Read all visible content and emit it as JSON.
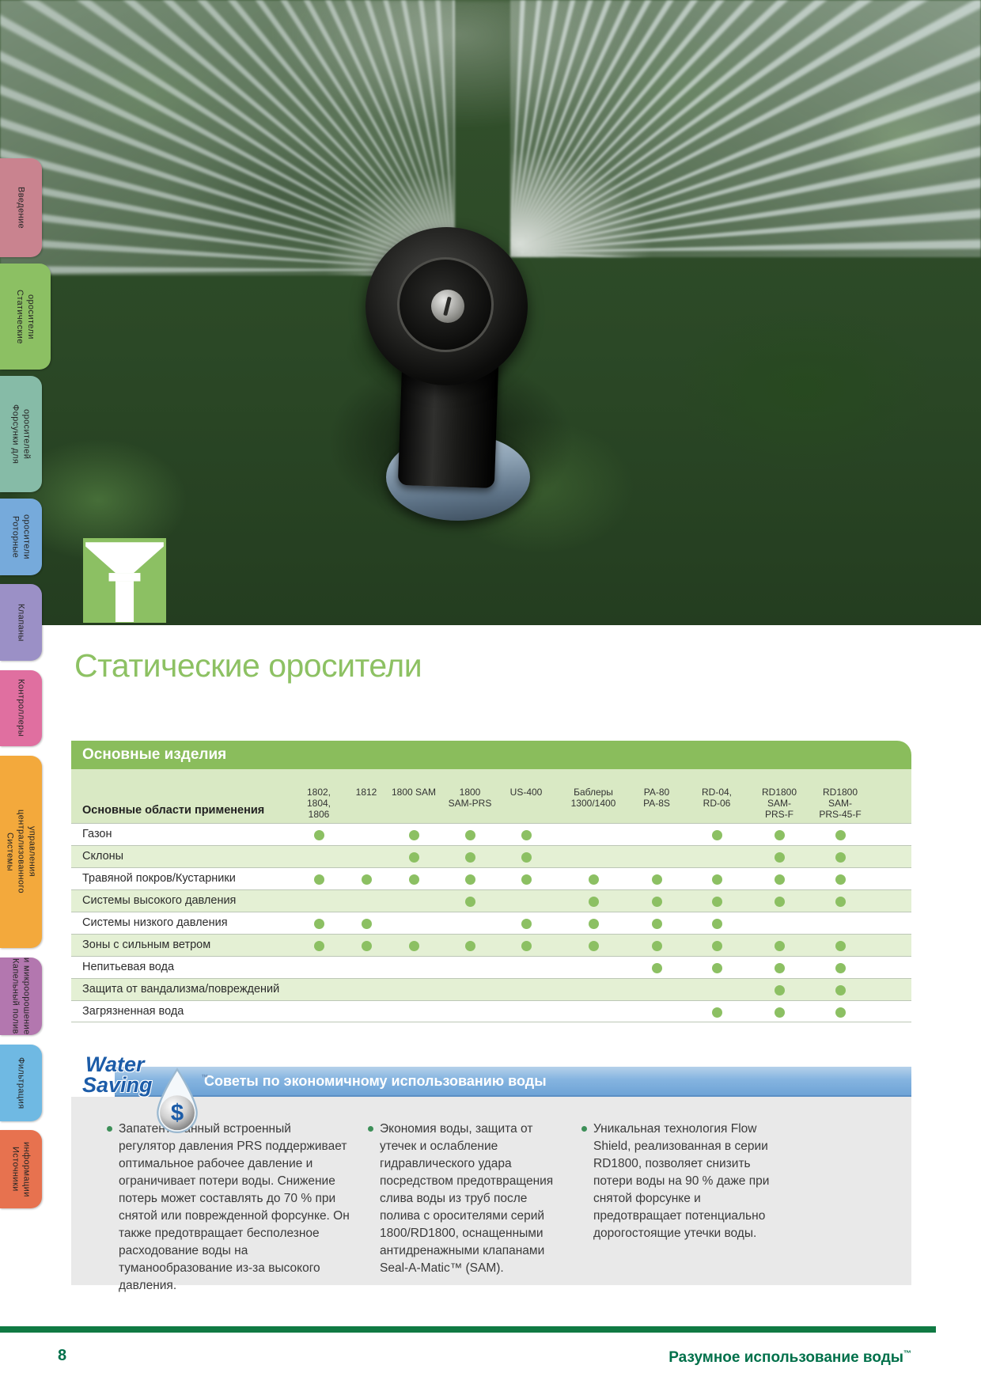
{
  "sidebar": {
    "tabs": [
      {
        "label": "Введение",
        "color": "#c9838f",
        "active": false
      },
      {
        "label": "Статические\nоросители",
        "color": "#8cc063",
        "active": true
      },
      {
        "label": "Форсунки для\nоросителей",
        "color": "#86bba7",
        "active": false
      },
      {
        "label": "Роторные оросители",
        "color": "#76aadb",
        "active": false
      },
      {
        "label": "Клапаны",
        "color": "#9b90c6",
        "active": false
      },
      {
        "label": "Контроллеры",
        "color": "#e06fa0",
        "active": false
      },
      {
        "label": "Системы\nцентрализованного\nуправления",
        "color": "#f3a93c",
        "active": false
      },
      {
        "label": "Капельный полив\nи микроорошение",
        "color": "#b377af",
        "active": false
      },
      {
        "label": "Фильтрация",
        "color": "#6fb9e3",
        "active": false
      },
      {
        "label": "Источники\nинформации",
        "color": "#e7724f",
        "active": false
      }
    ]
  },
  "hero": {
    "title": "Статические оросители",
    "section_icon": "spray-sprinkler-icon"
  },
  "table": {
    "title": "Основные изделия",
    "row_header_label": "Основные области применения",
    "columns": [
      "1802,\n1804,\n1806",
      "1812",
      "1800 SAM",
      "1800\nSAM-PRS",
      "US-400",
      "Баблеры\n1300/1400",
      "PA-80\nPA-8S",
      "RD-04,\nRD-06",
      "RD1800\nSAM-\nPRS-F",
      "RD1800\nSAM-\nPRS-45-F"
    ],
    "rows": [
      {
        "label": "Газон",
        "dots": [
          1,
          0,
          1,
          1,
          1,
          0,
          0,
          1,
          1,
          1
        ]
      },
      {
        "label": "Склоны",
        "dots": [
          0,
          0,
          1,
          1,
          1,
          0,
          0,
          0,
          1,
          1
        ]
      },
      {
        "label": "Травяной покров/Кустарники",
        "dots": [
          1,
          1,
          1,
          1,
          1,
          1,
          1,
          1,
          1,
          1
        ]
      },
      {
        "label": "Системы высокого давления",
        "dots": [
          0,
          0,
          0,
          1,
          0,
          1,
          1,
          1,
          1,
          1
        ]
      },
      {
        "label": "Системы низкого давления",
        "dots": [
          1,
          1,
          0,
          0,
          1,
          1,
          1,
          1,
          0,
          0
        ]
      },
      {
        "label": "Зоны с сильным ветром",
        "dots": [
          1,
          1,
          1,
          1,
          1,
          1,
          1,
          1,
          1,
          1
        ]
      },
      {
        "label": "Непитьевая вода",
        "dots": [
          0,
          0,
          0,
          0,
          0,
          0,
          1,
          1,
          1,
          1
        ]
      },
      {
        "label": "Защита от вандализма/повреждений",
        "dots": [
          0,
          0,
          0,
          0,
          0,
          0,
          0,
          0,
          1,
          1
        ]
      },
      {
        "label": "Загрязненная вода",
        "dots": [
          0,
          0,
          0,
          0,
          0,
          0,
          0,
          1,
          1,
          1
        ]
      }
    ]
  },
  "water_saving": {
    "logo_line1": "Water",
    "logo_line2": "Saving",
    "logo_tm": "™",
    "logo_dollar": "$",
    "band_title": "Советы по экономичному использованию воды",
    "bullets": [
      "Запатентованный встроенный регулятор давления PRS поддерживает оптимальное рабочее давление и ограничивает потери воды. Снижение потерь может составлять до 70 % при снятой или поврежденной форсунке. Он также предотвращает бесполезное расходование воды на туманообразование из-за высокого давления.",
      "Экономия воды, защита от утечек и ослабление гидравлического удара посредством предотвращения слива воды из труб после полива с оросителями серий 1800/RD1800, оснащенными антидренажными клапанами Seal-A-Matic™ (SAM).",
      "Уникальная технология Flow Shield, реализованная в серии RD1800, позволяет снизить потери воды на 90 % даже при снятой форсунке и предотвращает потенциально дорогостоящие утечки воды."
    ]
  },
  "footer": {
    "page_number": "8",
    "tagline": "Разумное использование воды",
    "tagline_tm": "™"
  },
  "colors": {
    "accent_green": "#8cc063",
    "table_bar_green": "#8abd5c",
    "table_header_bg": "#d9e9c4",
    "table_alt_row": "#e4f0d4",
    "band_blue": "#7fb0de",
    "footer_green": "#00704a",
    "rule_green": "#107a43",
    "logo_blue": "#1c5ca8"
  }
}
